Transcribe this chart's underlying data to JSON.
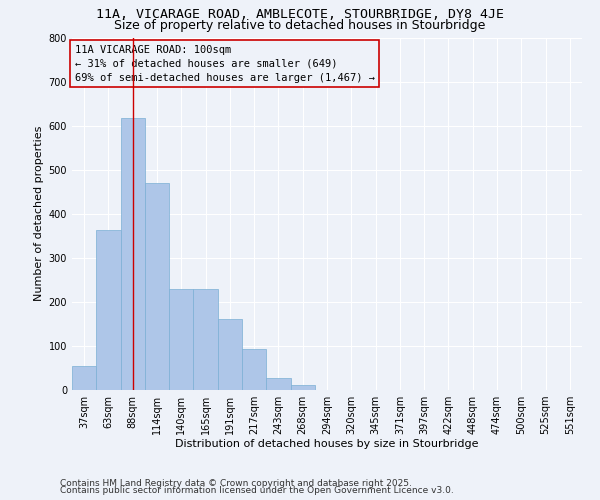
{
  "title1": "11A, VICARAGE ROAD, AMBLECOTE, STOURBRIDGE, DY8 4JE",
  "title2": "Size of property relative to detached houses in Stourbridge",
  "xlabel": "Distribution of detached houses by size in Stourbridge",
  "ylabel": "Number of detached properties",
  "categories": [
    "37sqm",
    "63sqm",
    "88sqm",
    "114sqm",
    "140sqm",
    "165sqm",
    "191sqm",
    "217sqm",
    "243sqm",
    "268sqm",
    "294sqm",
    "320sqm",
    "345sqm",
    "371sqm",
    "397sqm",
    "422sqm",
    "448sqm",
    "474sqm",
    "500sqm",
    "525sqm",
    "551sqm"
  ],
  "values": [
    55,
    363,
    617,
    470,
    230,
    230,
    161,
    94,
    27,
    12,
    0,
    0,
    0,
    0,
    0,
    0,
    0,
    0,
    0,
    0,
    0
  ],
  "bar_color": "#aec6e8",
  "bar_edgecolor": "#7bafd4",
  "property_bin_index": 2,
  "vline_color": "#cc0000",
  "annotation_text": "11A VICARAGE ROAD: 100sqm\n← 31% of detached houses are smaller (649)\n69% of semi-detached houses are larger (1,467) →",
  "annotation_box_edgecolor": "#cc0000",
  "ylim": [
    0,
    800
  ],
  "yticks": [
    0,
    100,
    200,
    300,
    400,
    500,
    600,
    700,
    800
  ],
  "footnote1": "Contains HM Land Registry data © Crown copyright and database right 2025.",
  "footnote2": "Contains public sector information licensed under the Open Government Licence v3.0.",
  "bg_color": "#eef2f9",
  "grid_color": "#ffffff",
  "title1_fontsize": 9.5,
  "title2_fontsize": 9,
  "axis_label_fontsize": 8,
  "tick_fontsize": 7,
  "annotation_fontsize": 7.5,
  "footnote_fontsize": 6.5
}
